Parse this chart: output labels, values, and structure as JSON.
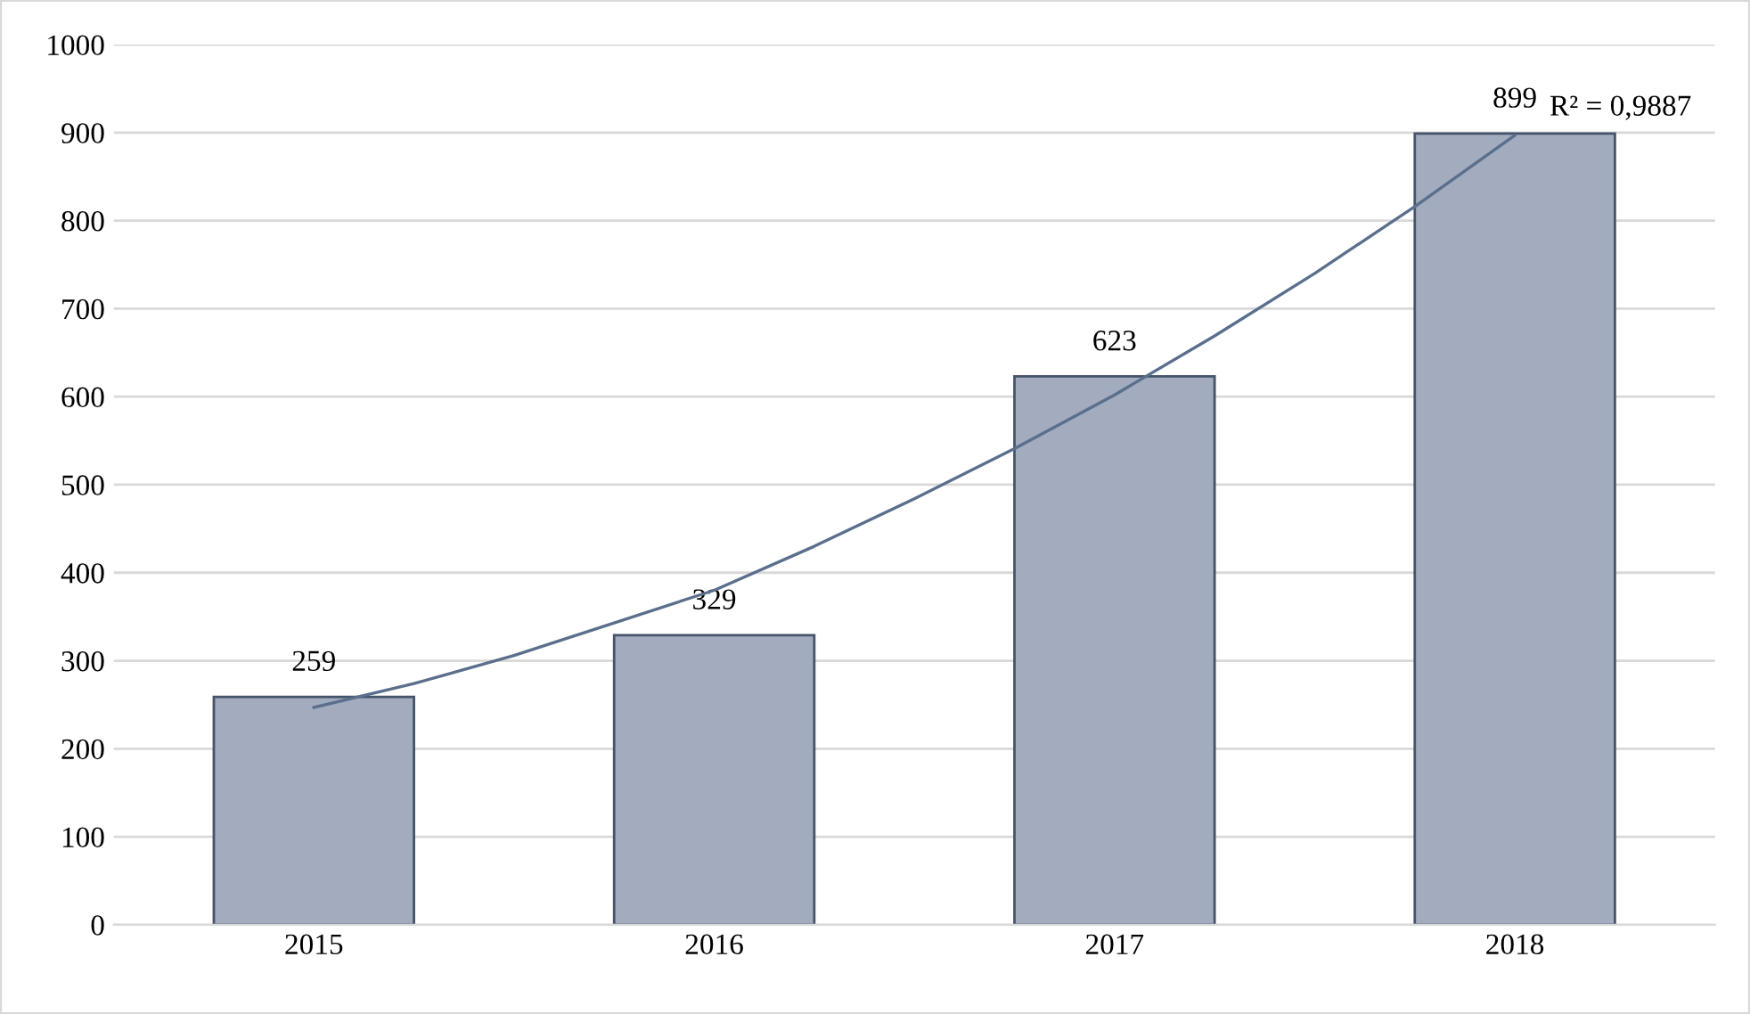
{
  "chart_data": {
    "type": "bar",
    "x": [
      2015,
      2016,
      2017,
      2018
    ],
    "xlim": [
      2014.5,
      2018.5
    ],
    "xticks": [
      2015,
      2016,
      2017,
      2018
    ],
    "series": [
      {
        "color": "#a3abbf",
        "values": [
          259,
          329,
          623,
          899
        ],
        "value_labels": [
          "259",
          "329",
          "623",
          "899"
        ]
      },
      {
        "type": "line",
        "color": "#5a6f8c",
        "x": [
          2015,
          2015.25,
          2015.5,
          2015.75,
          2016,
          2016.25,
          2016.5,
          2016.75,
          2017,
          2017.25,
          2017.5,
          2017.75,
          2018
        ],
        "values": [
          247,
          274,
          306,
          343,
          380,
          430,
          484,
          541,
          602,
          669,
          740,
          816,
          897
        ]
      }
    ],
    "ylim": [
      0,
      1000
    ],
    "yticks": [
      0,
      100,
      200,
      300,
      400,
      500,
      600,
      700,
      800,
      900,
      1000
    ],
    "grid": "y",
    "annotations": [
      "R² = 0,9887"
    ]
  }
}
